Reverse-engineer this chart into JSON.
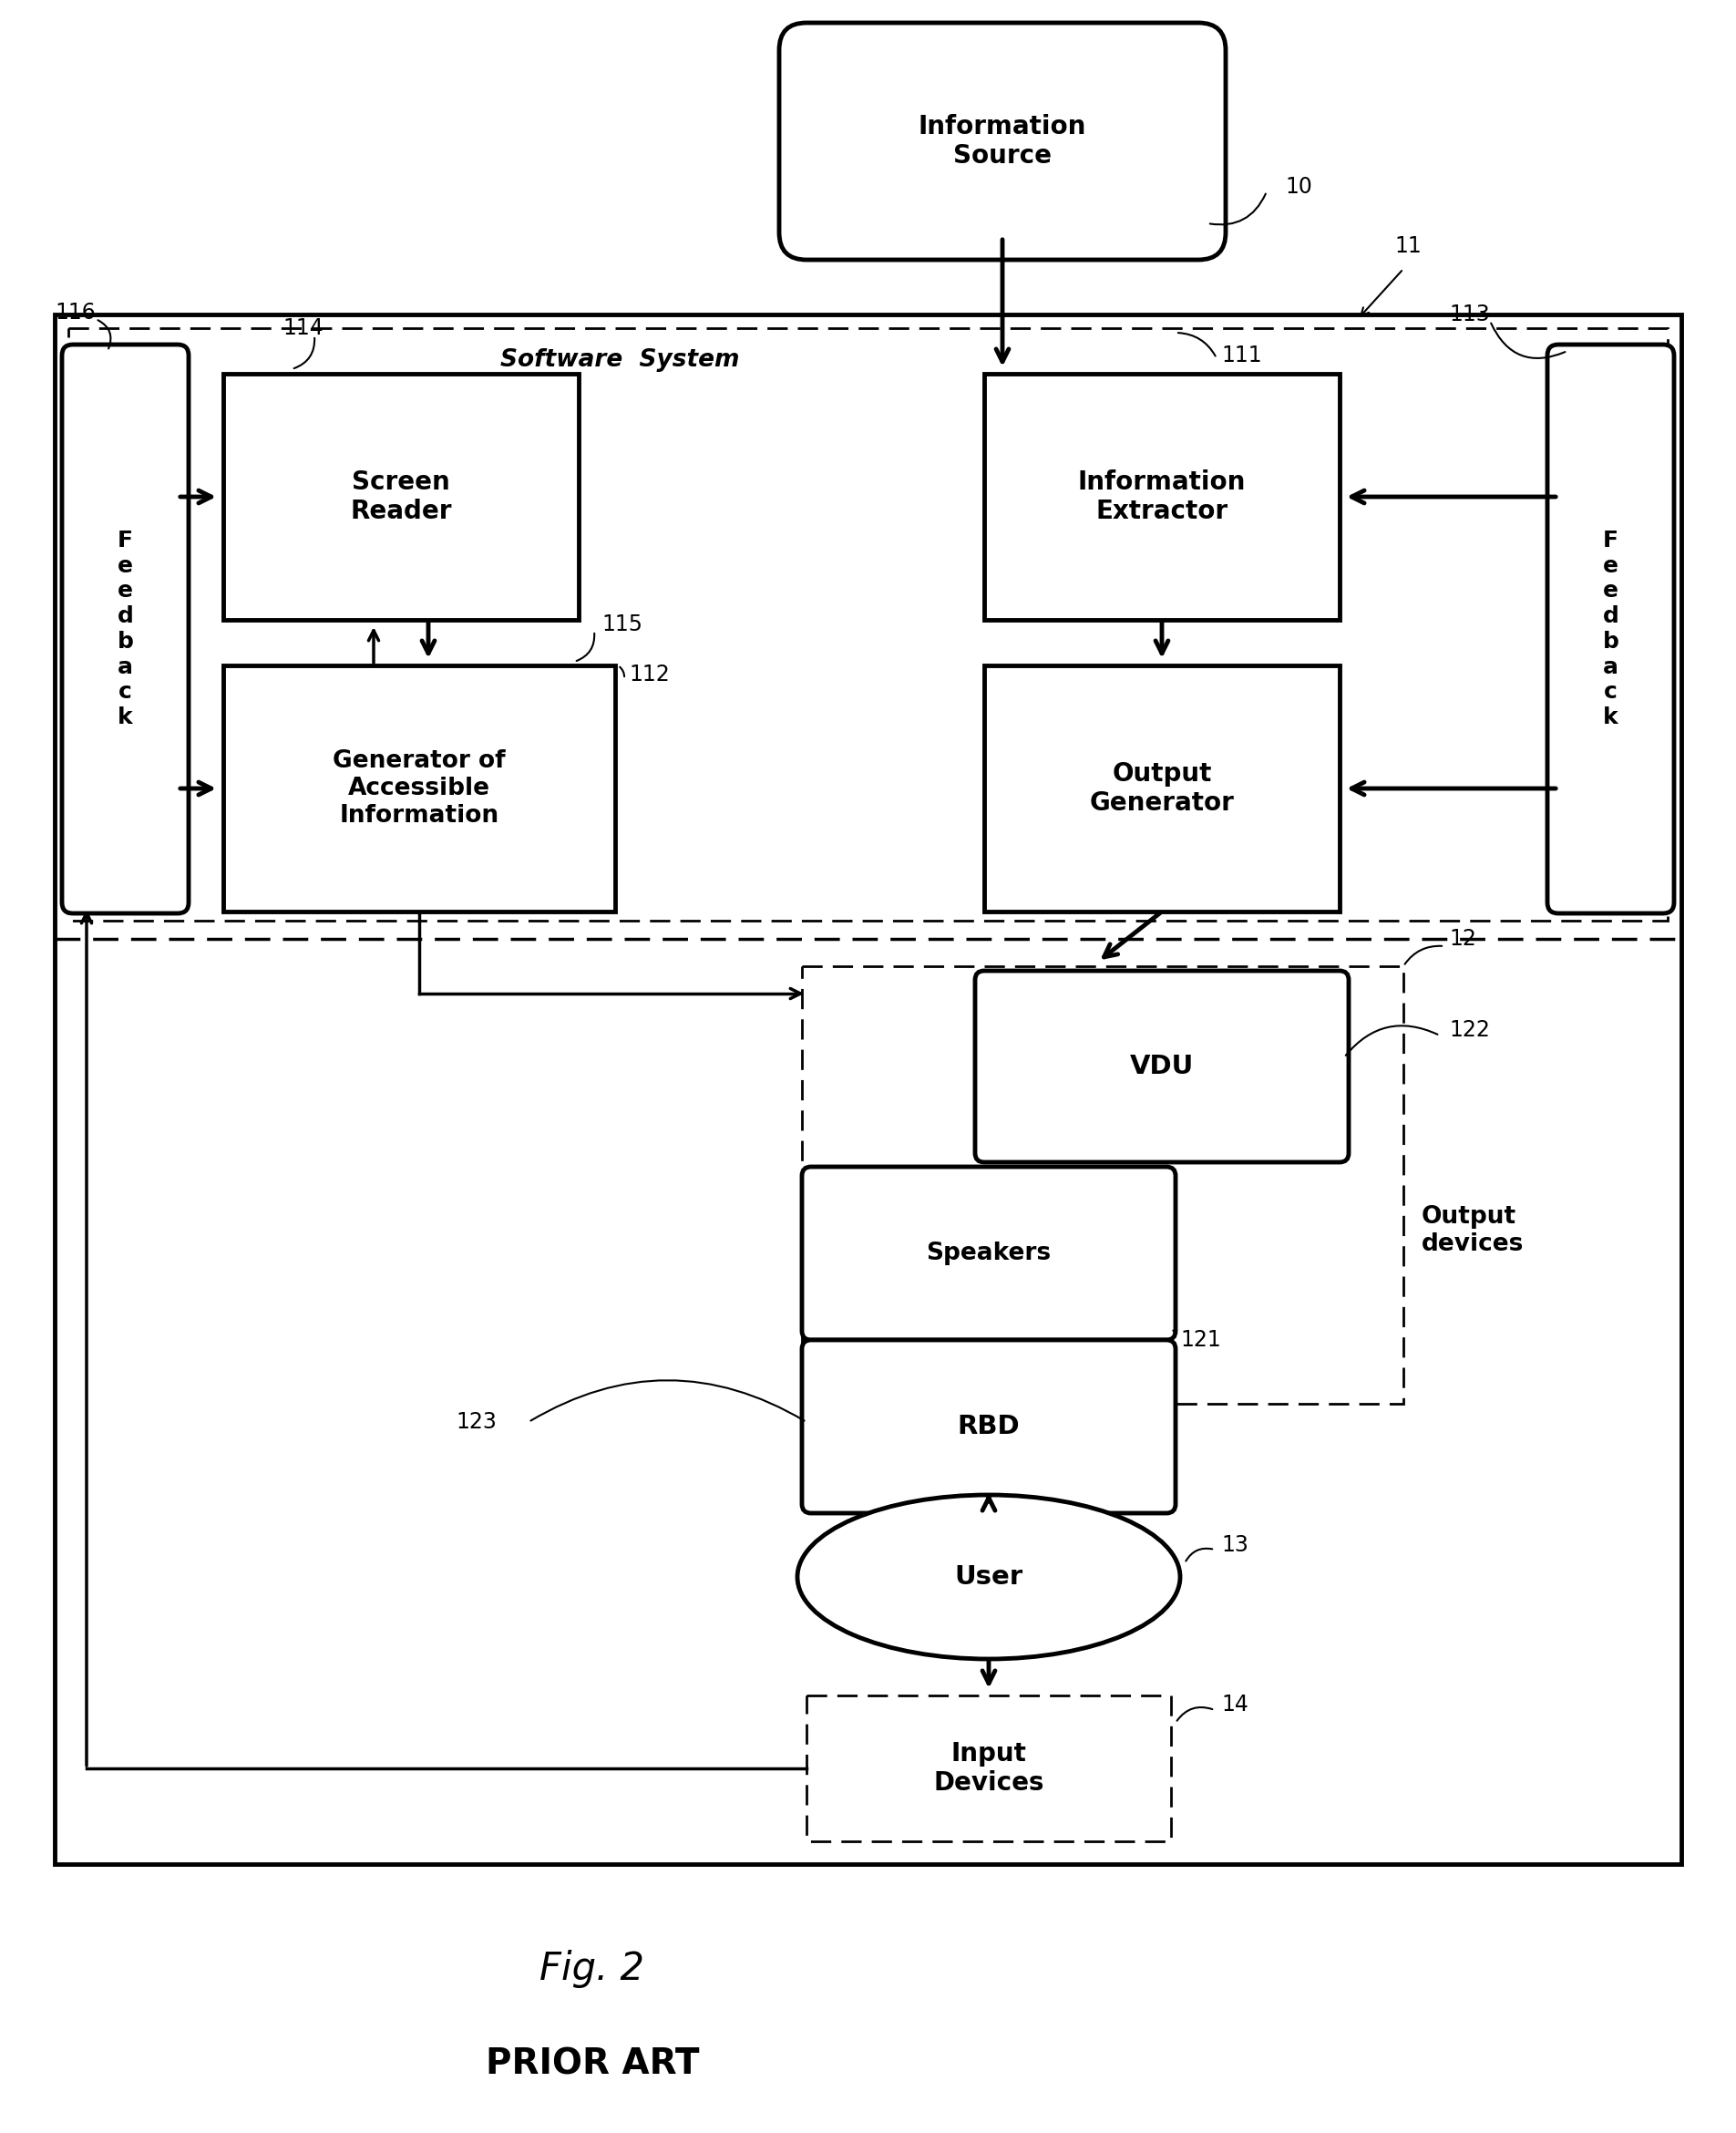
{
  "bg_color": "#ffffff",
  "fig_width": 19.05,
  "fig_height": 23.4,
  "title": "Fig. 2",
  "subtitle": "PRIOR ART",
  "labels": {
    "info_source": "Information\nSource",
    "software_system": "Software  System",
    "screen_reader": "Screen\nReader",
    "info_extractor": "Information\nExtractor",
    "generator": "Generator of\nAccessible\nInformation",
    "output_generator": "Output\nGenerator",
    "feedback_left": "F\ne\ne\nd\nb\na\nc\nk",
    "feedback_right": "F\ne\ne\nd\nb\na\nc\nk",
    "vdu": "VDU",
    "speakers": "Speakers",
    "rbd": "RBD",
    "output_devices": "Output\ndevices",
    "user": "User",
    "input_devices": "Input\nDevices"
  },
  "ref_nums": {
    "info_source": "10",
    "ref_11": "11",
    "ref_111": "111",
    "screen_reader": "114",
    "feedback_left": "116",
    "feedback_right": "113",
    "generator": "112",
    "ref_115": "115",
    "output_devices": "12",
    "vdu": "122",
    "speakers": "121",
    "rbd": "123",
    "user": "13",
    "input_devices": "14"
  }
}
